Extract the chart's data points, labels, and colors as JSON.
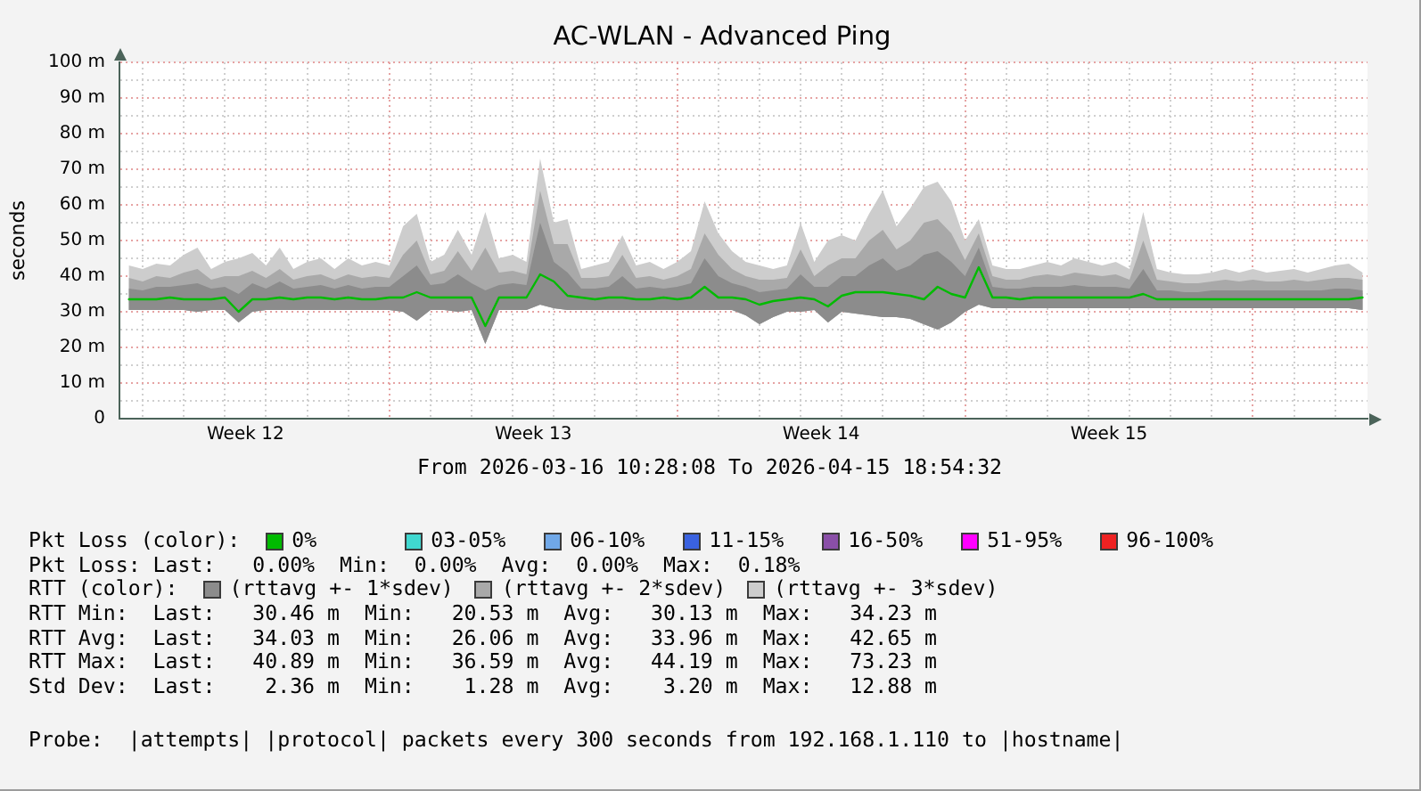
{
  "chart_data": {
    "type": "line",
    "title": "AC-WLAN - Advanced Ping",
    "xlabel": "From 2026-03-16 10:28:08 To 2026-04-15 18:54:32",
    "ylabel": "seconds",
    "x": [
      "2026-03-16T16:00",
      "2026-03-17T00:00",
      "2026-03-17T08:00",
      "2026-03-17T16:00",
      "2026-03-18T00:00",
      "2026-03-18T08:00",
      "2026-03-18T16:00",
      "2026-03-19T00:00",
      "2026-03-19T08:00",
      "2026-03-19T16:00",
      "2026-03-20T00:00",
      "2026-03-20T08:00",
      "2026-03-20T16:00",
      "2026-03-21T00:00",
      "2026-03-21T08:00",
      "2026-03-21T16:00",
      "2026-03-22T00:00",
      "2026-03-22T08:00",
      "2026-03-22T16:00",
      "2026-03-23T00:00",
      "2026-03-23T08:00",
      "2026-03-23T16:00",
      "2026-03-24T00:00",
      "2026-03-24T08:00",
      "2026-03-24T16:00",
      "2026-03-25T00:00",
      "2026-03-25T08:00",
      "2026-03-25T16:00",
      "2026-03-26T00:00",
      "2026-03-26T08:00",
      "2026-03-26T16:00",
      "2026-03-27T00:00",
      "2026-03-27T08:00",
      "2026-03-27T16:00",
      "2026-03-28T00:00",
      "2026-03-28T08:00",
      "2026-03-28T16:00",
      "2026-03-29T00:00",
      "2026-03-29T08:00",
      "2026-03-29T16:00",
      "2026-03-30T00:00",
      "2026-03-30T08:00",
      "2026-03-30T16:00",
      "2026-03-31T00:00",
      "2026-03-31T08:00",
      "2026-03-31T16:00",
      "2026-04-01T00:00",
      "2026-04-01T08:00",
      "2026-04-01T16:00",
      "2026-04-02T00:00",
      "2026-04-02T08:00",
      "2026-04-02T16:00",
      "2026-04-03T00:00",
      "2026-04-03T08:00",
      "2026-04-03T16:00",
      "2026-04-04T00:00",
      "2026-04-04T08:00",
      "2026-04-04T16:00",
      "2026-04-05T00:00",
      "2026-04-05T08:00",
      "2026-04-05T16:00",
      "2026-04-06T00:00",
      "2026-04-06T08:00",
      "2026-04-06T16:00",
      "2026-04-07T00:00",
      "2026-04-07T08:00",
      "2026-04-07T16:00",
      "2026-04-08T00:00",
      "2026-04-08T08:00",
      "2026-04-08T16:00",
      "2026-04-09T00:00",
      "2026-04-09T08:00",
      "2026-04-09T16:00",
      "2026-04-10T00:00",
      "2026-04-10T08:00",
      "2026-04-10T16:00",
      "2026-04-11T00:00",
      "2026-04-11T08:00",
      "2026-04-11T16:00",
      "2026-04-12T00:00",
      "2026-04-12T08:00",
      "2026-04-12T16:00",
      "2026-04-13T00:00",
      "2026-04-13T08:00",
      "2026-04-13T16:00",
      "2026-04-14T00:00",
      "2026-04-14T08:00",
      "2026-04-14T16:00",
      "2026-04-15T00:00",
      "2026-04-15T08:00",
      "2026-04-15T16:00"
    ],
    "xlim": [
      "2026-03-16T10:28",
      "2026-04-15T18:54"
    ],
    "xticks": [
      {
        "value": "2026-03-17T00:00",
        "label": null
      },
      {
        "value": "2026-03-18T00:00",
        "label": null
      },
      {
        "value": "2026-03-19T00:00",
        "label": null
      },
      {
        "value": "2026-03-19T12:00",
        "label": "Week 12"
      },
      {
        "value": "2026-03-20T00:00",
        "label": null
      },
      {
        "value": "2026-03-21T00:00",
        "label": null
      },
      {
        "value": "2026-03-22T00:00",
        "label": null
      },
      {
        "value": "2026-03-23T00:00",
        "label": null
      },
      {
        "value": "2026-03-24T00:00",
        "label": null
      },
      {
        "value": "2026-03-25T00:00",
        "label": null
      },
      {
        "value": "2026-03-26T00:00",
        "label": null
      },
      {
        "value": "2026-03-26T12:00",
        "label": "Week 13"
      },
      {
        "value": "2026-03-27T00:00",
        "label": null
      },
      {
        "value": "2026-03-28T00:00",
        "label": null
      },
      {
        "value": "2026-03-29T00:00",
        "label": null
      },
      {
        "value": "2026-03-30T00:00",
        "label": null
      },
      {
        "value": "2026-03-31T00:00",
        "label": null
      },
      {
        "value": "2026-04-01T00:00",
        "label": null
      },
      {
        "value": "2026-04-02T00:00",
        "label": null
      },
      {
        "value": "2026-04-02T12:00",
        "label": "Week 14"
      },
      {
        "value": "2026-04-03T00:00",
        "label": null
      },
      {
        "value": "2026-04-04T00:00",
        "label": null
      },
      {
        "value": "2026-04-05T00:00",
        "label": null
      },
      {
        "value": "2026-04-06T00:00",
        "label": null
      },
      {
        "value": "2026-04-07T00:00",
        "label": null
      },
      {
        "value": "2026-04-08T00:00",
        "label": null
      },
      {
        "value": "2026-04-09T00:00",
        "label": null
      },
      {
        "value": "2026-04-09T12:00",
        "label": "Week 15"
      },
      {
        "value": "2026-04-10T00:00",
        "label": null
      },
      {
        "value": "2026-04-11T00:00",
        "label": null
      },
      {
        "value": "2026-04-12T00:00",
        "label": null
      },
      {
        "value": "2026-04-13T00:00",
        "label": null
      },
      {
        "value": "2026-04-14T00:00",
        "label": null
      },
      {
        "value": "2026-04-15T00:00",
        "label": null
      }
    ],
    "ylim": [
      0,
      100
    ],
    "yticks": [
      0,
      {
        "value": 5,
        "label": null
      },
      {
        "value": 10,
        "label": "10 m"
      },
      {
        "value": 15,
        "label": null
      },
      {
        "value": 20,
        "label": "20 m"
      },
      {
        "value": 25,
        "label": null
      },
      {
        "value": 30,
        "label": "30 m"
      },
      {
        "value": 35,
        "label": null
      },
      {
        "value": 40,
        "label": "40 m"
      },
      {
        "value": 45,
        "label": null
      },
      {
        "value": 50,
        "label": "50 m"
      },
      {
        "value": 55,
        "label": null
      },
      {
        "value": 60,
        "label": "60 m"
      },
      {
        "value": 65,
        "label": null
      },
      {
        "value": 70,
        "label": "70 m"
      },
      {
        "value": 75,
        "label": null
      },
      {
        "value": 80,
        "label": "80 m"
      },
      {
        "value": 85,
        "label": null
      },
      {
        "value": 90,
        "label": "90 m"
      },
      {
        "value": 95,
        "label": null
      },
      {
        "value": 100,
        "label": "100 m"
      }
    ],
    "grid": true,
    "legend": "bottom",
    "series": [
      {
        "name": "0%",
        "color": "#00bb00",
        "values": [
          33.5,
          33.5,
          33.5,
          34,
          33.5,
          33.5,
          33.5,
          34,
          30,
          33.5,
          33.5,
          34,
          33.5,
          34,
          34,
          33.5,
          34,
          33.5,
          33.5,
          34,
          34,
          35.5,
          34,
          34,
          34,
          34,
          26,
          34,
          34,
          34,
          40.5,
          38.5,
          34.5,
          34,
          33.5,
          34,
          34,
          33.5,
          33.5,
          34,
          33.5,
          34,
          37,
          34,
          34,
          33.5,
          32,
          33,
          33.5,
          34,
          33.5,
          31.5,
          34.5,
          35.5,
          35.5,
          35.5,
          35,
          34.5,
          33.5,
          37,
          35,
          34,
          42.5,
          34,
          34,
          33.5,
          34,
          34,
          34,
          34,
          34,
          34,
          34,
          34,
          35,
          33.5,
          33.5,
          33.5,
          33.5,
          33.5,
          33.5,
          33.5,
          33.5,
          33.5,
          33.5,
          33.5,
          33.5,
          33.5,
          33.5,
          33.5,
          34
        ]
      },
      {
        "name": "03-05%",
        "color": "#40d8d0",
        "values": [
          null,
          null,
          null,
          null,
          null,
          null,
          null,
          null,
          null,
          null,
          null,
          null,
          null,
          null,
          null,
          null,
          null,
          null,
          null,
          null,
          null,
          null,
          null,
          null,
          null,
          null,
          null,
          null,
          null,
          null,
          null,
          null,
          null,
          null,
          null,
          null,
          null,
          null,
          null,
          null,
          null,
          null,
          null,
          null,
          null,
          null,
          null,
          null,
          null,
          null,
          null,
          null,
          null,
          null,
          null,
          null,
          null,
          null,
          null,
          null,
          null,
          null,
          null,
          null,
          null,
          null,
          null,
          null,
          null,
          null,
          null,
          null,
          null,
          null,
          null,
          null,
          null,
          null,
          null,
          null,
          null,
          null,
          null,
          null,
          null,
          null,
          null,
          null,
          null,
          null,
          null
        ]
      },
      {
        "name": "06-10%",
        "color": "#70a8e8",
        "values": [
          null,
          null,
          null,
          null,
          null,
          null,
          null,
          null,
          null,
          null,
          null,
          null,
          null,
          null,
          null,
          null,
          null,
          null,
          null,
          null,
          null,
          null,
          null,
          null,
          null,
          null,
          null,
          null,
          null,
          null,
          null,
          null,
          null,
          null,
          null,
          null,
          null,
          null,
          null,
          null,
          null,
          null,
          null,
          null,
          null,
          null,
          null,
          null,
          null,
          null,
          null,
          null,
          null,
          null,
          null,
          null,
          null,
          null,
          null,
          null,
          null,
          null,
          null,
          null,
          null,
          null,
          null,
          null,
          null,
          null,
          null,
          null,
          null,
          null,
          null,
          null,
          null,
          null,
          null,
          null,
          null,
          null,
          null,
          null,
          null,
          null,
          null,
          null,
          null,
          null,
          null
        ]
      },
      {
        "name": "11-15%",
        "color": "#3a62e0",
        "values": [
          null,
          null,
          null,
          null,
          null,
          null,
          null,
          null,
          null,
          null,
          null,
          null,
          null,
          null,
          null,
          null,
          null,
          null,
          null,
          null,
          null,
          null,
          null,
          null,
          null,
          null,
          null,
          null,
          null,
          null,
          null,
          null,
          null,
          null,
          null,
          null,
          null,
          null,
          null,
          null,
          null,
          null,
          null,
          null,
          null,
          null,
          null,
          null,
          null,
          null,
          null,
          null,
          null,
          null,
          null,
          null,
          null,
          null,
          null,
          null,
          null,
          null,
          null,
          null,
          null,
          null,
          null,
          null,
          null,
          null,
          null,
          null,
          null,
          null,
          null,
          null,
          null,
          null,
          null,
          null,
          null,
          null,
          null,
          null,
          null,
          null,
          null,
          null,
          null,
          null,
          null
        ]
      },
      {
        "name": "16-50%",
        "color": "#8a4fa8",
        "values": [
          null,
          null,
          null,
          null,
          null,
          null,
          null,
          null,
          null,
          null,
          null,
          null,
          null,
          null,
          null,
          null,
          null,
          null,
          null,
          null,
          null,
          null,
          null,
          null,
          null,
          null,
          null,
          null,
          null,
          null,
          null,
          null,
          null,
          null,
          null,
          null,
          null,
          null,
          null,
          null,
          null,
          null,
          null,
          null,
          null,
          null,
          null,
          null,
          null,
          null,
          null,
          null,
          null,
          null,
          null,
          null,
          null,
          null,
          null,
          null,
          null,
          null,
          null,
          null,
          null,
          null,
          null,
          null,
          null,
          null,
          null,
          null,
          null,
          null,
          null,
          null,
          null,
          null,
          null,
          null,
          null,
          null,
          null,
          null,
          null,
          null,
          null,
          null,
          null,
          null,
          null
        ]
      },
      {
        "name": "51-95%",
        "color": "#ff00ff",
        "values": [
          null,
          null,
          null,
          null,
          null,
          null,
          null,
          null,
          null,
          null,
          null,
          null,
          null,
          null,
          null,
          null,
          null,
          null,
          null,
          null,
          null,
          null,
          null,
          null,
          null,
          null,
          null,
          null,
          null,
          null,
          null,
          null,
          null,
          null,
          null,
          null,
          null,
          null,
          null,
          null,
          null,
          null,
          null,
          null,
          null,
          null,
          null,
          null,
          null,
          null,
          null,
          null,
          null,
          null,
          null,
          null,
          null,
          null,
          null,
          null,
          null,
          null,
          null,
          null,
          null,
          null,
          null,
          null,
          null,
          null,
          null,
          null,
          null,
          null,
          null,
          null,
          null,
          null,
          null,
          null,
          null,
          null,
          null,
          null,
          null,
          null,
          null,
          null,
          null,
          null,
          null
        ]
      },
      {
        "name": "96-100%",
        "color": "#ee2222",
        "values": [
          null,
          null,
          null,
          null,
          null,
          null,
          null,
          null,
          null,
          null,
          null,
          null,
          null,
          null,
          null,
          null,
          null,
          null,
          null,
          null,
          null,
          null,
          null,
          null,
          null,
          null,
          null,
          null,
          null,
          null,
          null,
          null,
          null,
          null,
          null,
          null,
          null,
          null,
          null,
          null,
          null,
          null,
          null,
          null,
          null,
          null,
          null,
          null,
          null,
          null,
          null,
          null,
          null,
          null,
          null,
          null,
          null,
          null,
          null,
          null,
          null,
          null,
          null,
          null,
          null,
          null,
          null,
          null,
          null,
          null,
          null,
          null,
          null,
          null,
          null,
          null,
          null,
          null,
          null,
          null,
          null,
          null,
          null,
          null,
          null,
          null,
          null,
          null,
          null,
          null,
          null
        ]
      },
      {
        "name": "(rttavg +- 1*sdev)",
        "color": "#8c8c8c",
        "type": "area",
        "values": [
          null,
          null,
          null,
          null,
          null,
          null,
          null,
          null,
          null,
          null,
          null,
          null,
          null,
          null,
          null,
          null,
          null,
          null,
          null,
          null,
          null,
          null,
          null,
          null,
          null,
          null,
          null,
          null,
          null,
          null,
          null,
          null,
          null,
          null,
          null,
          null,
          null,
          null,
          null,
          null,
          null,
          null,
          null,
          null,
          null,
          null,
          null,
          null,
          null,
          null,
          null,
          null,
          null,
          null,
          null,
          null,
          null,
          null,
          null,
          null,
          null,
          null,
          null,
          null,
          null,
          null,
          null,
          null,
          null,
          null,
          null,
          null,
          null,
          null,
          null,
          null,
          null,
          null,
          null,
          null,
          null,
          null,
          null,
          null,
          null,
          null,
          null,
          null,
          null,
          null,
          null
        ],
        "lower": [
          30.5,
          30.5,
          30.5,
          30.5,
          30.5,
          30,
          30.5,
          30.5,
          27,
          30,
          30.5,
          30.5,
          30.5,
          30.5,
          30.5,
          30.5,
          30.5,
          30.5,
          30.5,
          30.5,
          30,
          27.5,
          30.5,
          30.5,
          30,
          30.5,
          21,
          30.5,
          30.5,
          30.5,
          32,
          31,
          30.5,
          30.5,
          30.5,
          30.5,
          30.5,
          30.5,
          30.5,
          30.5,
          30.5,
          30.5,
          30.5,
          30.5,
          30.5,
          29,
          26.5,
          28.5,
          30,
          30,
          30.5,
          27,
          30,
          29.5,
          29,
          28.5,
          28.5,
          28,
          26.5,
          25,
          27,
          30,
          32,
          31,
          31,
          31,
          31,
          31,
          31,
          31,
          31,
          31,
          31,
          31,
          31,
          31,
          31,
          31,
          31,
          31,
          31,
          31,
          31,
          31,
          31,
          31,
          31,
          31,
          31,
          31,
          30.5
        ],
        "upper": [
          36.5,
          36,
          37,
          37,
          37.5,
          38,
          36.5,
          37,
          35,
          38,
          36.5,
          38.5,
          36.5,
          37,
          37.5,
          36.5,
          37.5,
          36.5,
          37,
          37,
          40,
          43,
          37.5,
          38,
          40.5,
          38,
          36,
          37.5,
          38,
          37.5,
          55,
          44,
          41,
          36.5,
          36.5,
          37,
          40,
          36.5,
          37,
          36.5,
          37,
          38,
          45,
          40,
          38,
          37,
          35.5,
          36,
          36.5,
          40.5,
          37,
          37,
          40,
          40,
          43,
          45,
          41.5,
          43,
          46,
          47,
          44,
          40,
          48,
          37,
          36.5,
          36.5,
          37,
          37,
          37,
          37.5,
          37,
          37,
          37,
          36.5,
          42,
          36,
          36,
          35.5,
          35.5,
          36,
          36,
          36,
          36,
          36,
          36,
          36,
          36,
          36,
          36.5,
          36.5,
          36
        ]
      },
      {
        "name": "(rttavg +- 2*sdev)",
        "color": "#a9a9a9",
        "type": "area",
        "values": [
          null,
          null,
          null,
          null,
          null,
          null,
          null,
          null,
          null,
          null,
          null,
          null,
          null,
          null,
          null,
          null,
          null,
          null,
          null,
          null,
          null,
          null,
          null,
          null,
          null,
          null,
          null,
          null,
          null,
          null,
          null,
          null,
          null,
          null,
          null,
          null,
          null,
          null,
          null,
          null,
          null,
          null,
          null,
          null,
          null,
          null,
          null,
          null,
          null,
          null,
          null,
          null,
          null,
          null,
          null,
          null,
          null,
          null,
          null,
          null,
          null,
          null,
          null,
          null,
          null,
          null,
          null,
          null,
          null,
          null,
          null,
          null,
          null,
          null,
          null,
          null,
          null,
          null,
          null,
          null,
          null,
          null,
          null,
          null,
          null,
          null,
          null,
          null,
          null,
          null,
          null
        ],
        "lower": [
          30.5,
          30.5,
          30.5,
          30.5,
          30.5,
          30,
          30.5,
          30.5,
          27,
          30,
          30.5,
          30.5,
          30.5,
          30.5,
          30.5,
          30.5,
          30.5,
          30.5,
          30.5,
          30.5,
          30,
          27.5,
          30.5,
          30.5,
          30,
          30.5,
          21,
          30.5,
          30.5,
          30.5,
          32,
          31,
          30.5,
          30.5,
          30.5,
          30.5,
          30.5,
          30.5,
          30.5,
          30.5,
          30.5,
          30.5,
          30.5,
          30.5,
          30.5,
          29,
          26.5,
          28.5,
          30,
          30,
          30.5,
          27,
          30,
          29.5,
          29,
          28.5,
          28.5,
          28,
          26.5,
          25,
          27,
          30,
          32,
          31,
          31,
          31,
          31,
          31,
          31,
          31,
          31,
          31,
          31,
          31,
          31,
          31,
          31,
          31,
          31,
          31,
          31,
          31,
          31,
          31,
          31,
          31,
          31,
          31,
          31,
          31,
          30.5
        ],
        "upper": [
          39.5,
          38.5,
          40,
          39.5,
          41,
          42,
          39,
          40,
          40,
          41.5,
          39.5,
          42,
          39,
          40,
          40.5,
          39,
          40.5,
          39.5,
          40,
          39.5,
          46,
          50,
          40.5,
          41.5,
          47,
          41.5,
          48,
          41,
          41.5,
          40.5,
          64,
          49,
          49,
          39.5,
          39.5,
          40,
          46,
          39.5,
          40,
          39,
          40,
          42,
          52,
          46,
          42,
          40,
          39,
          39,
          39.5,
          47.5,
          40,
          43,
          45,
          45,
          50,
          53,
          47.5,
          50,
          55,
          56,
          52,
          44.5,
          52,
          40,
          39,
          39,
          40,
          40.5,
          40,
          41,
          40.5,
          40,
          40.5,
          39,
          50,
          39,
          38.5,
          38,
          38,
          38.5,
          39,
          38.5,
          39,
          38.5,
          38.5,
          39,
          38.5,
          39,
          39.5,
          39.5,
          39
        ]
      },
      {
        "name": "(rttavg +- 3*sdev)",
        "color": "#cdcdcd",
        "type": "area",
        "values": [
          null,
          null,
          null,
          null,
          null,
          null,
          null,
          null,
          null,
          null,
          null,
          null,
          null,
          null,
          null,
          null,
          null,
          null,
          null,
          null,
          null,
          null,
          null,
          null,
          null,
          null,
          null,
          null,
          null,
          null,
          null,
          null,
          null,
          null,
          null,
          null,
          null,
          null,
          null,
          null,
          null,
          null,
          null,
          null,
          null,
          null,
          null,
          null,
          null,
          null,
          null,
          null,
          null,
          null,
          null,
          null,
          null,
          null,
          null,
          null,
          null,
          null,
          null,
          null,
          null,
          null,
          null,
          null,
          null,
          null,
          null,
          null,
          null,
          null,
          null,
          null,
          null,
          null,
          null,
          null,
          null,
          null,
          null,
          null,
          null,
          null,
          null,
          null,
          null,
          null,
          null
        ],
        "lower": [
          30.5,
          30.5,
          30.5,
          30.5,
          30.5,
          30,
          30.5,
          30.5,
          27,
          30,
          30.5,
          30.5,
          30.5,
          30.5,
          30.5,
          30.5,
          30.5,
          30.5,
          30.5,
          30.5,
          30,
          27.5,
          30.5,
          30.5,
          30,
          30.5,
          21,
          30.5,
          30.5,
          30.5,
          32,
          31,
          30.5,
          30.5,
          30.5,
          30.5,
          30.5,
          30.5,
          30.5,
          30.5,
          30.5,
          30.5,
          30.5,
          30.5,
          30.5,
          29,
          26.5,
          28.5,
          30,
          30,
          30.5,
          27,
          30,
          29.5,
          29,
          28.5,
          28.5,
          28,
          26.5,
          25,
          27,
          30,
          32,
          31,
          31,
          31,
          31,
          31,
          31,
          31,
          31,
          31,
          31,
          31,
          31,
          31,
          31,
          31,
          31,
          31,
          31,
          31,
          31,
          31,
          31,
          31,
          31,
          31,
          31,
          31,
          30.5
        ],
        "upper": [
          43,
          42,
          43.5,
          43,
          46,
          48,
          42,
          44,
          45,
          46.5,
          43,
          48,
          42,
          44,
          45,
          42,
          45,
          43,
          44,
          43,
          54,
          57.5,
          44,
          46,
          53,
          46,
          58,
          45,
          46,
          44,
          73,
          55,
          56,
          42,
          43,
          44,
          51.5,
          43,
          44,
          42,
          44,
          47,
          61,
          52,
          47,
          44,
          43,
          42,
          43,
          55,
          44,
          50,
          51.5,
          50,
          57.5,
          64,
          54,
          59,
          65,
          66.5,
          61,
          50,
          56,
          43,
          42,
          42,
          43,
          44,
          43,
          45,
          44,
          43,
          44,
          42,
          58,
          42,
          41,
          40.5,
          40.5,
          41,
          42,
          41,
          42,
          41,
          41.5,
          42,
          41,
          42,
          43,
          43.5,
          41
        ]
      }
    ],
    "annotations": [
      "Pkt Loss (color):",
      "Pkt Loss: Last:   0.00%  Min:  0.00%  Avg:  0.00%  Max:  0.18%",
      "RTT (color):",
      "RTT Min:  Last:   30.46 m  Min:   20.53 m  Avg:   30.13 m  Max:   34.23 m",
      "RTT Avg:  Last:   34.03 m  Min:   26.06 m  Avg:   33.96 m  Max:   42.65 m",
      "RTT Max:  Last:   40.89 m  Min:   36.59 m  Avg:   44.19 m  Max:   73.23 m",
      "Std Dev:  Last:    2.36 m  Min:    1.28 m  Avg:    3.20 m  Max:   12.88 m",
      "Probe:  |attempts| |protocol| packets every 300 seconds from 192.168.1.110 to |hostname|"
    ]
  }
}
